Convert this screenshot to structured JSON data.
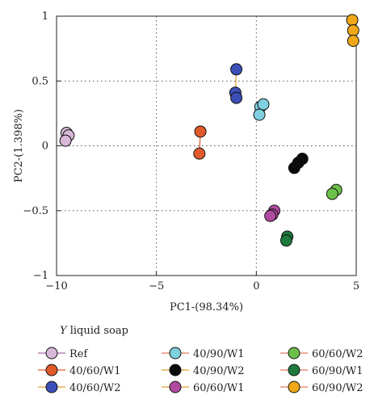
{
  "chart_data": {
    "type": "scatter",
    "xlabel": "PC1-(98.34%)",
    "ylabel": "PC2-(1.398%)",
    "xlim": [
      -10,
      5
    ],
    "ylim": [
      -1,
      1
    ],
    "xticks": [
      -10,
      -5,
      0,
      5
    ],
    "yticks": [
      -1,
      -0.5,
      0,
      0.5,
      1
    ],
    "xtick_labels": [
      "−10",
      "−5",
      "0",
      "5"
    ],
    "ytick_labels": [
      "−1",
      "−0.5",
      "0",
      "0.5",
      "1"
    ],
    "grid": "dotted",
    "legend": {
      "title_italic": "Y",
      "title_rest": " liquid soap",
      "placement": "bottom"
    },
    "series": [
      {
        "name": "Ref",
        "color": "#d8b9d9",
        "line_color": "#a86aa8",
        "points": [
          [
            -9.5,
            0.1
          ],
          [
            -9.4,
            0.08
          ],
          [
            -9.55,
            0.04
          ]
        ]
      },
      {
        "name": "40/60/W1",
        "color": "#e05a2b",
        "line_color": "#e05a2b",
        "points": [
          [
            -2.8,
            0.11
          ],
          [
            -2.85,
            -0.06
          ]
        ]
      },
      {
        "name": "40/60/W2",
        "color": "#3b4fb8",
        "line_color": "#e0a030",
        "points": [
          [
            -1.0,
            0.59
          ],
          [
            -1.05,
            0.41
          ],
          [
            -1.0,
            0.37
          ]
        ]
      },
      {
        "name": "40/90/W1",
        "color": "#7fd0e0",
        "line_color": "#e07a5f",
        "points": [
          [
            0.2,
            0.3
          ],
          [
            0.35,
            0.32
          ],
          [
            0.15,
            0.24
          ]
        ]
      },
      {
        "name": "40/90/W2",
        "color": "#0a0a0a",
        "line_color": "#e0a030",
        "points": [
          [
            2.3,
            -0.1
          ],
          [
            2.1,
            -0.13
          ],
          [
            1.9,
            -0.17
          ]
        ]
      },
      {
        "name": "60/60/W1",
        "color": "#b04aa0",
        "line_color": "#e0a030",
        "points": [
          [
            0.9,
            -0.5
          ],
          [
            0.8,
            -0.53
          ],
          [
            0.7,
            -0.54
          ]
        ]
      },
      {
        "name": "60/60/W2",
        "color": "#6cc04a",
        "line_color": "#e07a5f",
        "points": [
          [
            4.0,
            -0.34
          ],
          [
            3.8,
            -0.37
          ]
        ]
      },
      {
        "name": "60/90/W1",
        "color": "#1e7a3c",
        "line_color": "#e07a5f",
        "points": [
          [
            1.55,
            -0.7
          ],
          [
            1.5,
            -0.73
          ]
        ]
      },
      {
        "name": "60/90/W2",
        "color": "#f0a818",
        "line_color": "#e07a5f",
        "points": [
          [
            4.8,
            0.97
          ],
          [
            4.85,
            0.89
          ],
          [
            4.85,
            0.81
          ]
        ]
      }
    ]
  }
}
